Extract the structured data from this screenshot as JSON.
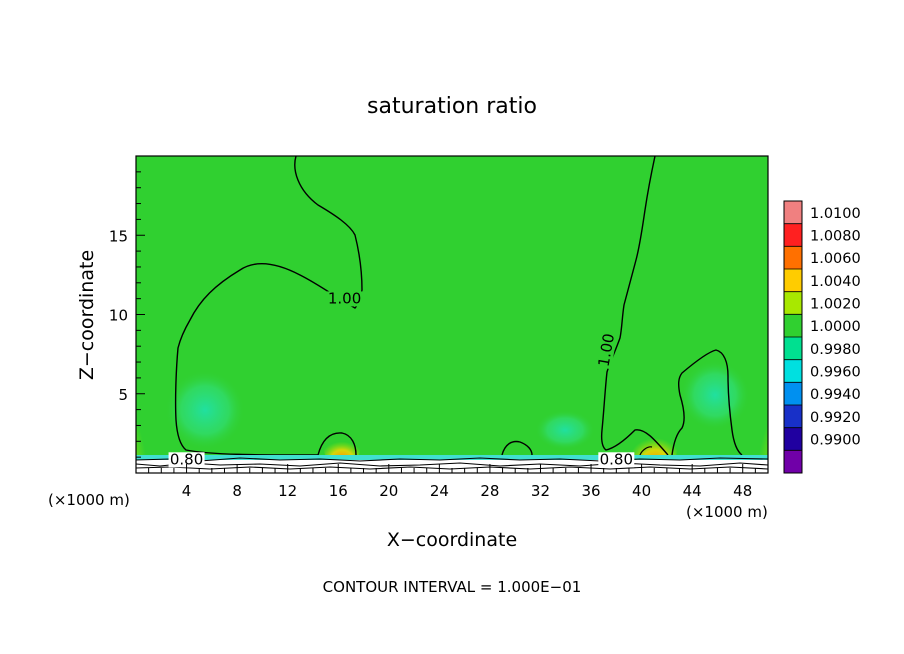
{
  "chart_data": {
    "type": "heatmap",
    "title": "saturation ratio",
    "xlabel": "X−coordinate",
    "ylabel": "Z−coordinate",
    "x_unit_left": "(×1000 m)",
    "x_unit_right": "(×1000 m)",
    "xlim": [
      0,
      50
    ],
    "ylim": [
      0,
      20
    ],
    "x_ticks": [
      4,
      8,
      12,
      16,
      20,
      24,
      28,
      32,
      36,
      40,
      44,
      48
    ],
    "y_ticks": [
      5,
      10,
      15
    ],
    "footer": "CONTOUR INTERVAL = 1.000E−01",
    "contour_labels": [
      {
        "text": "1.00",
        "x": 16.5,
        "y": 10.7,
        "rotate": 0
      },
      {
        "text": "1.00",
        "x": 37.6,
        "y": 7.7,
        "rotate": -80
      },
      {
        "text": "0.80",
        "x": 4.0,
        "y": 0.55,
        "rotate": 0
      },
      {
        "text": "0.80",
        "x": 38.0,
        "y": 0.55,
        "rotate": 0
      }
    ],
    "colorbar": {
      "labels": [
        "1.0100",
        "1.0080",
        "1.0060",
        "1.0040",
        "1.0020",
        "1.0000",
        "0.9980",
        "0.9960",
        "0.9940",
        "0.9920",
        "0.9900"
      ],
      "colors": [
        "#f08080",
        "#ff2020",
        "#ff7000",
        "#ffcc00",
        "#a8e800",
        "#30d030",
        "#00e090",
        "#00e0e0",
        "#0090f0",
        "#1830c8",
        "#2000a0",
        "#7000a8"
      ]
    }
  }
}
